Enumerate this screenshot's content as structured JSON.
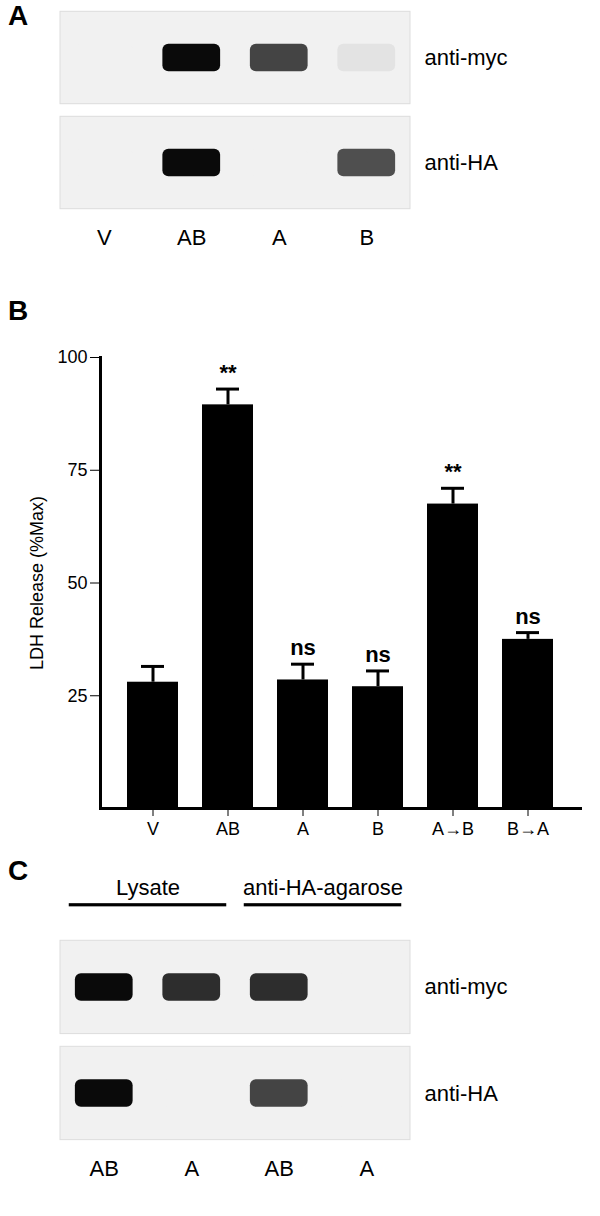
{
  "chart_data": {
    "type": "bar",
    "panel_label": "B",
    "categories": [
      "V",
      "AB",
      "A",
      "B",
      "A→B",
      "B→A"
    ],
    "values": [
      28,
      89.5,
      28.5,
      27,
      67.5,
      37.5
    ],
    "errors": [
      3.5,
      3.5,
      3.5,
      3.5,
      3.5,
      1.5
    ],
    "significance": [
      null,
      "**",
      "ns",
      "ns",
      "**",
      "ns"
    ],
    "ylabel": "LDH Release (%Max)",
    "color": "#000000",
    "ylim": [
      0,
      100
    ],
    "yticks": [
      25,
      50,
      75,
      100
    ],
    "grid": false
  },
  "blots": [
    {
      "panel_label": "A",
      "lanes": [
        "V",
        "AB",
        "A",
        "B"
      ],
      "rows": [
        {
          "label": "anti-myc",
          "intensities": [
            0,
            1,
            0.75,
            0.06
          ]
        },
        {
          "label": "anti-HA",
          "intensities": [
            0,
            1,
            0,
            0.7
          ]
        }
      ]
    },
    {
      "panel_label": "C",
      "lanes": [
        "AB",
        "A",
        "AB",
        "A"
      ],
      "groups": [
        {
          "label": "Lysate",
          "lanes": [
            0,
            1
          ]
        },
        {
          "label": "anti-HA-agarose",
          "lanes": [
            2,
            3
          ]
        }
      ],
      "rows": [
        {
          "label": "anti-myc",
          "intensities": [
            1,
            0.85,
            0.85,
            0
          ]
        },
        {
          "label": "anti-HA",
          "intensities": [
            1,
            0,
            0.75,
            0
          ]
        }
      ]
    }
  ]
}
